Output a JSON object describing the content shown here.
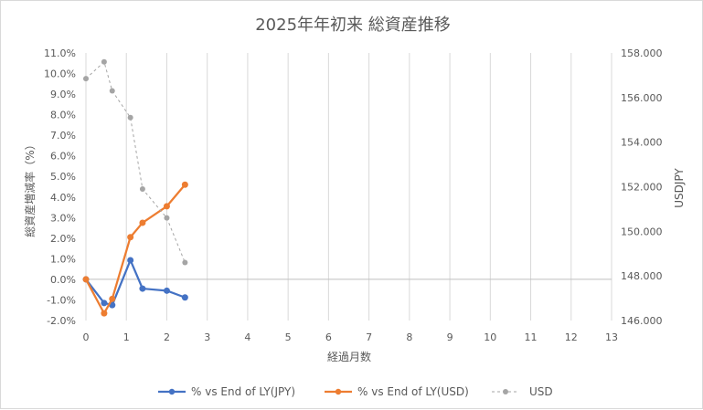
{
  "chart_data": {
    "type": "line",
    "title": "2025年年初来 総資産推移",
    "xlabel": "経過月数",
    "ylabel": "総資産増減率（%）",
    "y2label": "USDJPY",
    "xlim": [
      0,
      13
    ],
    "ylim": [
      -0.02,
      0.11
    ],
    "y2lim": [
      146.0,
      158.0
    ],
    "x_ticks": [
      "0",
      "1",
      "2",
      "3",
      "4",
      "5",
      "6",
      "7",
      "8",
      "9",
      "10",
      "11",
      "12",
      "13"
    ],
    "y_ticks": [
      "11.0%",
      "10.0%",
      "9.0%",
      "8.0%",
      "7.0%",
      "6.0%",
      "5.0%",
      "4.0%",
      "3.0%",
      "2.0%",
      "1.0%",
      "0.0%",
      "-1.0%",
      "-2.0%"
    ],
    "y2_ticks": [
      "158.000",
      "156.000",
      "154.000",
      "152.000",
      "150.000",
      "148.000",
      "146.000"
    ],
    "grid": "vertical",
    "legend_position": "bottom",
    "series": [
      {
        "name": "% vs End of LY(JPY)",
        "axis": "left",
        "color": "#4472c4",
        "style": "solid",
        "x": [
          0,
          0.45,
          0.65,
          1.1,
          1.4,
          2.0,
          2.45
        ],
        "y": [
          0.0,
          -0.0115,
          -0.0125,
          0.0093,
          -0.0045,
          -0.0055,
          -0.0088
        ]
      },
      {
        "name": "% vs End of LY(USD)",
        "axis": "left",
        "color": "#ed7d31",
        "style": "solid",
        "x": [
          0,
          0.45,
          0.65,
          1.1,
          1.4,
          2.0,
          2.45
        ],
        "y": [
          0.0,
          -0.0165,
          -0.0095,
          0.0205,
          0.0275,
          0.0355,
          0.046
        ]
      },
      {
        "name": "USD",
        "axis": "right",
        "color": "#a5a5a5",
        "style": "dashed",
        "x": [
          0,
          0.45,
          0.65,
          1.1,
          1.4,
          2.0,
          2.45
        ],
        "y": [
          156.85,
          157.6,
          156.3,
          155.1,
          151.9,
          150.6,
          148.6
        ]
      }
    ]
  }
}
